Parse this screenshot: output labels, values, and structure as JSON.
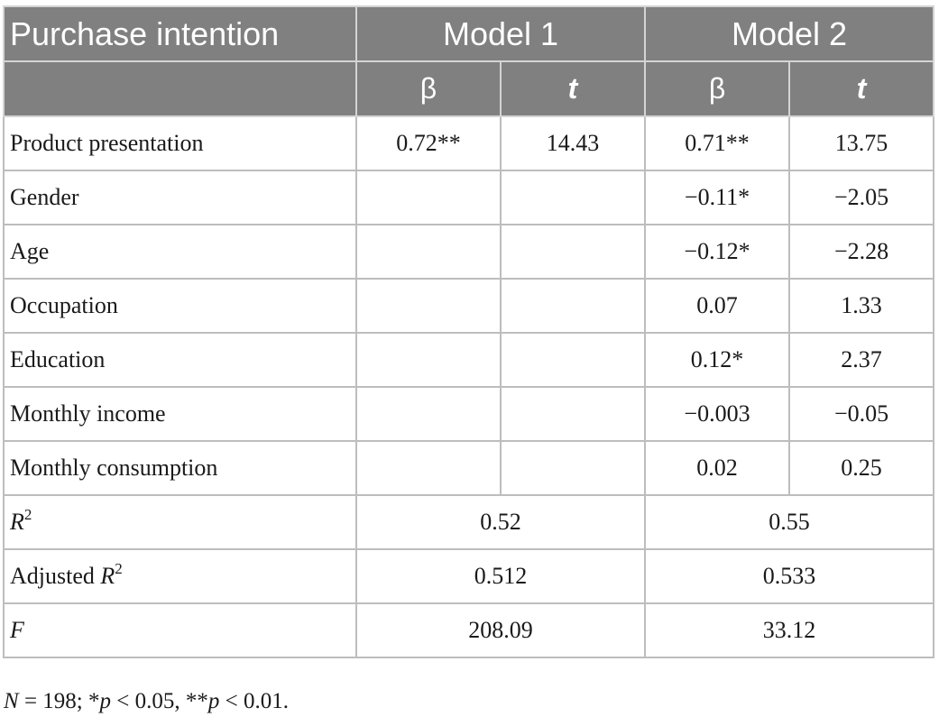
{
  "header": {
    "row_title": "Purchase intention",
    "model1": "Model 1",
    "model2": "Model 2",
    "beta": "β",
    "t": "t"
  },
  "rows": [
    {
      "label": "Product presentation",
      "m1_beta": "0.72**",
      "m1_t": "14.43",
      "m2_beta": "0.71**",
      "m2_t": "13.75"
    },
    {
      "label": "Gender",
      "m1_beta": "",
      "m1_t": "",
      "m2_beta": "−0.11*",
      "m2_t": "−2.05"
    },
    {
      "label": "Age",
      "m1_beta": "",
      "m1_t": "",
      "m2_beta": "−0.12*",
      "m2_t": "−2.28"
    },
    {
      "label": "Occupation",
      "m1_beta": "",
      "m1_t": "",
      "m2_beta": "0.07",
      "m2_t": "1.33"
    },
    {
      "label": "Education",
      "m1_beta": "",
      "m1_t": "",
      "m2_beta": "0.12*",
      "m2_t": "2.37"
    },
    {
      "label": "Monthly income",
      "m1_beta": "",
      "m1_t": "",
      "m2_beta": "−0.003",
      "m2_t": "−0.05"
    },
    {
      "label": "Monthly consumption",
      "m1_beta": "",
      "m1_t": "",
      "m2_beta": "0.02",
      "m2_t": "0.25"
    }
  ],
  "summary": {
    "r2": {
      "letter": "R",
      "sup": "2",
      "m1": "0.52",
      "m2": "0.55"
    },
    "adj_r2": {
      "prefix": "Adjusted ",
      "letter": "R",
      "sup": "2",
      "m1": "0.512",
      "m2": "0.533"
    },
    "f": {
      "letter": "F",
      "m1": "208.09",
      "m2": "33.12"
    }
  },
  "note": {
    "n_letter": "N",
    "n_text": " = 198; ",
    "star1": "*",
    "p_letter_1": "p",
    "p1_text": " < 0.05, ",
    "star2": "**",
    "p_letter_2": "p",
    "p2_text": " < 0.01."
  }
}
